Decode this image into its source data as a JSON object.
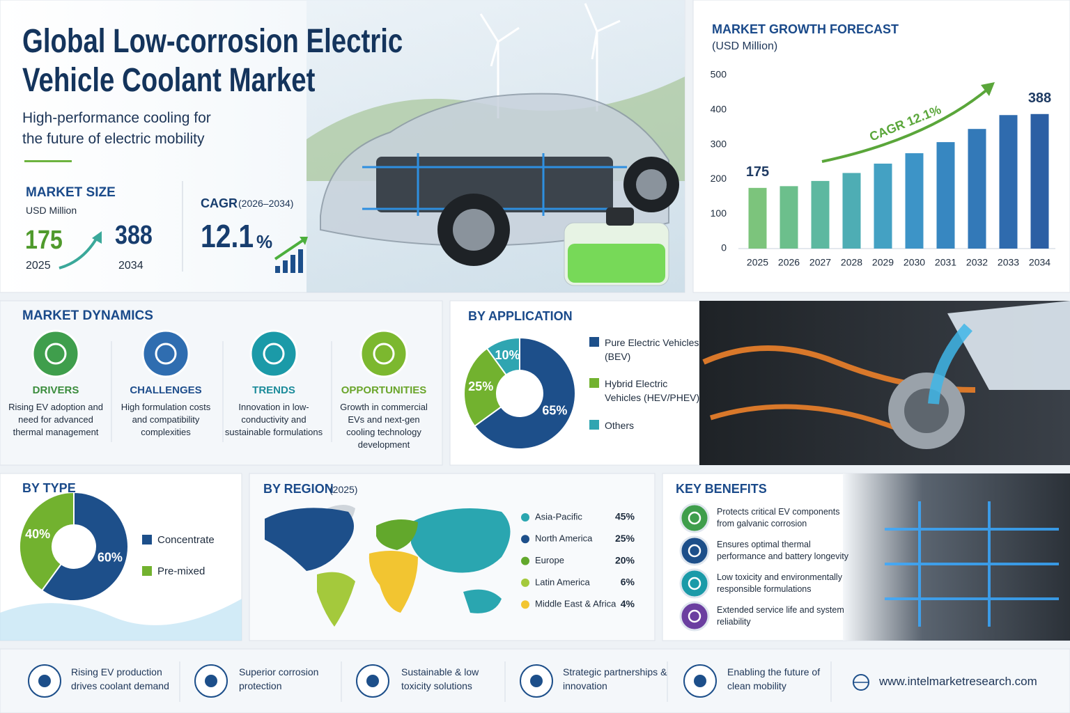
{
  "header": {
    "title": "Global Low-corrosion Electric Vehicle Coolant Market",
    "subtitle": "High-performance cooling for the future of electric mobility"
  },
  "market_size": {
    "label": "MARKET SIZE",
    "unit": "USD Million",
    "start_value": 175,
    "start_year": 2025,
    "end_value": 388,
    "end_year": 2034
  },
  "cagr": {
    "label": "CAGR",
    "period": "(2026–2034)",
    "value": 12.1,
    "unit": "%"
  },
  "market_dynamics": {
    "title": "MARKET DYNAMICS",
    "items": [
      {
        "title": "DRIVERS",
        "text": "Rising EV adoption and need for advanced thermal management"
      },
      {
        "title": "CHALLENGES",
        "text": "High formulation costs and compatibility complexities"
      },
      {
        "title": "TRENDS",
        "text": "Innovation in low-conductivity and sustainable formulations"
      },
      {
        "title": "OPPORTUNITIES",
        "text": "Growth in commercial EVs and next-gen cooling technology development"
      }
    ]
  },
  "key_benefits": {
    "title": "KEY BENEFITS",
    "items": [
      "Protects critical EV components from galvanic corrosion",
      "Ensures optimal thermal performance and battery longevity",
      "Low toxicity and environmentally responsible formulations",
      "Extended service life and system reliability"
    ]
  },
  "footer": {
    "items": [
      "Rising EV production drives coolant demand",
      "Superior corrosion protection",
      "Sustainable & low toxicity solutions",
      "Strategic partnerships & innovation",
      "Enabling the future of clean mobility"
    ],
    "url": "www.intelmarketresearch.com"
  },
  "chart_data": [
    {
      "type": "bar",
      "title": "MARKET GROWTH FORECAST",
      "subtitle": "(USD Million)",
      "categories": [
        "2025",
        "2026",
        "2027",
        "2028",
        "2029",
        "2030",
        "2031",
        "2032",
        "2033",
        "2034"
      ],
      "values": [
        175,
        180,
        195,
        218,
        245,
        275,
        307,
        345,
        385,
        388
      ],
      "value_labels": [
        "175",
        null,
        null,
        null,
        null,
        null,
        null,
        null,
        null,
        "388"
      ],
      "colors": [
        "#7cc47c",
        "#6cbf8c",
        "#5db8a0",
        "#4eadb4",
        "#44a1c3",
        "#3d94c7",
        "#3787c1",
        "#3379b8",
        "#2f6bae",
        "#2c5fa4"
      ],
      "ylim": [
        0,
        500
      ],
      "yticks": [
        0,
        100,
        200,
        300,
        400,
        500
      ],
      "grid": false,
      "annotation": "CAGR 12.1%"
    },
    {
      "type": "donut",
      "title": "BY APPLICATION",
      "categories": [
        "Pure Electric Vehicles (BEV)",
        "Hybrid Electric Vehicles (HEV/PHEV)",
        "Others"
      ],
      "values": [
        65,
        25,
        10
      ],
      "value_labels": [
        "65%",
        "25%",
        "10%"
      ],
      "colors": [
        "#1d4f8a",
        "#72b22f",
        "#2fa5b1"
      ]
    },
    {
      "type": "donut",
      "title": "BY TYPE",
      "categories": [
        "Concentrate",
        "Pre-mixed"
      ],
      "values": [
        60,
        40
      ],
      "value_labels": [
        "60%",
        "40%"
      ],
      "colors": [
        "#1d4f8a",
        "#72b22f"
      ]
    },
    {
      "type": "map",
      "title": "BY REGION",
      "title_note": "(2025)",
      "categories": [
        "Asia-Pacific",
        "North America",
        "Europe",
        "Latin America",
        "Middle East & Africa"
      ],
      "values": [
        45,
        25,
        20,
        6,
        4
      ],
      "value_labels": [
        "45%",
        "25%",
        "20%",
        "6%",
        "4%"
      ],
      "colors": [
        "#2aa6b0",
        "#1d4f8a",
        "#62a82c",
        "#a4c93c",
        "#f2c531"
      ]
    }
  ]
}
